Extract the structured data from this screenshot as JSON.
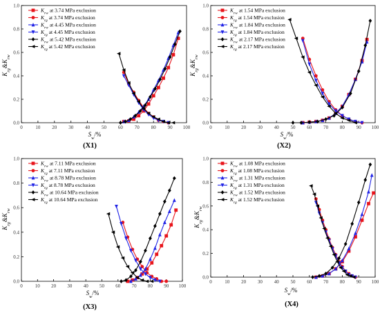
{
  "colors": {
    "red": "#e8141b",
    "blue": "#1f22e6",
    "black": "#000000"
  },
  "chart_data": [
    {
      "type": "line",
      "panel_label": "(X1)",
      "xlabel": "Sw/%",
      "ylabel": "Krg&Krw",
      "xlim": [
        0,
        100
      ],
      "ylim": [
        0,
        1.0
      ],
      "xticks": [
        "0",
        "10",
        "20",
        "30",
        "40",
        "50",
        "60",
        "70",
        "80",
        "90",
        "100"
      ],
      "yticks": [
        "0.0",
        "0.2",
        "0.4",
        "0.6",
        "0.8",
        "1.0"
      ],
      "legend_position": "top-left",
      "series": [
        {
          "name": "Krw at 3.74 MPa exclusion",
          "sym": "Krw",
          "pressure": "at 3.74 MPa exclusion",
          "color": "red",
          "marker": "square",
          "x": [
            62,
            65,
            68,
            71,
            74,
            77,
            80,
            83,
            86,
            89,
            92,
            95
          ],
          "y": [
            0.01,
            0.015,
            0.03,
            0.06,
            0.1,
            0.16,
            0.23,
            0.3,
            0.38,
            0.47,
            0.58,
            0.72
          ]
        },
        {
          "name": "Krg at 3.74 MPa exclusion",
          "sym": "Krg",
          "pressure": "at 3.74 MPa exclusion",
          "color": "red",
          "marker": "circle",
          "x": [
            62,
            65,
            68,
            71,
            74,
            77,
            80,
            83,
            86,
            89
          ],
          "y": [
            0.43,
            0.33,
            0.26,
            0.19,
            0.13,
            0.08,
            0.05,
            0.02,
            0.01,
            0.0
          ]
        },
        {
          "name": "Krw at 4.45 MPa exclusion",
          "sym": "Krw",
          "pressure": "at 4.45 MPa exclusion",
          "color": "blue",
          "marker": "triangle-up",
          "x": [
            62,
            65,
            68,
            71,
            74,
            77,
            80,
            83,
            86,
            89,
            92,
            95
          ],
          "y": [
            0.01,
            0.02,
            0.05,
            0.09,
            0.14,
            0.2,
            0.28,
            0.36,
            0.45,
            0.55,
            0.66,
            0.77
          ]
        },
        {
          "name": "Krg at 4.45 MPa exclusion",
          "sym": "Krg",
          "pressure": "at 4.45 MPa exclusion",
          "color": "blue",
          "marker": "triangle-down",
          "x": [
            62,
            65,
            68,
            71,
            74,
            77,
            80,
            83,
            86,
            89
          ],
          "y": [
            0.4,
            0.32,
            0.24,
            0.17,
            0.11,
            0.07,
            0.04,
            0.02,
            0.01,
            0.0
          ]
        },
        {
          "name": "Krw at 5.42 MPa exclusion",
          "sym": "Krw",
          "pressure": "at 5.42 MPa exclusion",
          "color": "black",
          "marker": "diamond",
          "x": [
            60,
            63,
            66,
            69,
            72,
            75,
            78,
            81,
            84,
            87,
            90,
            93,
            96
          ],
          "y": [
            0.0,
            0.01,
            0.03,
            0.06,
            0.1,
            0.15,
            0.22,
            0.29,
            0.37,
            0.46,
            0.56,
            0.67,
            0.78
          ]
        },
        {
          "name": "Krg at 5.42 MPa exclusion",
          "sym": "Krg",
          "pressure": "at 5.42 MPa exclusion",
          "color": "black",
          "marker": "tri-left",
          "x": [
            59,
            62,
            65,
            68,
            71,
            74,
            77,
            80,
            83,
            86,
            89,
            92
          ],
          "y": [
            0.59,
            0.45,
            0.34,
            0.25,
            0.18,
            0.12,
            0.08,
            0.05,
            0.03,
            0.01,
            0.0,
            0.0
          ]
        }
      ]
    },
    {
      "type": "line",
      "panel_label": "(X2)",
      "xlabel": "Sw/%",
      "ylabel": "Krg&Krw",
      "xlim": [
        0,
        100
      ],
      "ylim": [
        0,
        1.0
      ],
      "xticks": [
        "0",
        "10",
        "20",
        "30",
        "40",
        "50",
        "60",
        "70",
        "80",
        "90",
        "100"
      ],
      "yticks": [
        "0.0",
        "0.2",
        "0.4",
        "0.6",
        "0.8",
        "1.0"
      ],
      "legend_position": "top-left",
      "series": [
        {
          "name": "Krw at 1.54 MPa exclusion",
          "sym": "Krw",
          "pressure": "at 1.54 MPa exclusion",
          "color": "red",
          "marker": "square",
          "x": [
            56,
            60,
            64,
            68,
            72,
            76,
            80,
            84,
            88,
            92,
            95
          ],
          "y": [
            0.0,
            0.005,
            0.01,
            0.02,
            0.04,
            0.08,
            0.14,
            0.24,
            0.37,
            0.53,
            0.71
          ]
        },
        {
          "name": "Krg at 1.54 MPa exclusion",
          "sym": "Krg",
          "pressure": "at 1.54 MPa exclusion",
          "color": "red",
          "marker": "circle",
          "x": [
            56,
            60,
            64,
            68,
            72,
            76,
            80,
            84,
            88,
            92
          ],
          "y": [
            0.72,
            0.54,
            0.4,
            0.28,
            0.18,
            0.11,
            0.06,
            0.03,
            0.01,
            0.0
          ]
        },
        {
          "name": "Krw at 1.84 MPa exclusion",
          "sym": "Krw",
          "pressure": "at 1.84 MPa exclusion",
          "color": "blue",
          "marker": "triangle-up",
          "x": [
            56,
            60,
            64,
            68,
            72,
            76,
            80,
            84,
            88,
            92,
            95
          ],
          "y": [
            0.0,
            0.005,
            0.01,
            0.02,
            0.04,
            0.08,
            0.14,
            0.24,
            0.37,
            0.52,
            0.69
          ]
        },
        {
          "name": "Krg at 1.84 MPa exclusion",
          "sym": "Krg",
          "pressure": "at 1.84 MPa exclusion",
          "color": "blue",
          "marker": "triangle-down",
          "x": [
            56,
            60,
            64,
            68,
            72,
            76,
            80,
            84,
            88,
            92
          ],
          "y": [
            0.7,
            0.5,
            0.36,
            0.25,
            0.16,
            0.1,
            0.06,
            0.03,
            0.01,
            0.0
          ]
        },
        {
          "name": "Krw at 2.17 MPa exclusion",
          "sym": "Krw",
          "pressure": "at 2.17 MPa exclusion",
          "color": "black",
          "marker": "diamond",
          "x": [
            50,
            55,
            60,
            65,
            70,
            75,
            80,
            85,
            90,
            94,
            97
          ],
          "y": [
            0.0,
            0.0,
            0.005,
            0.01,
            0.03,
            0.06,
            0.13,
            0.25,
            0.44,
            0.66,
            0.87
          ]
        },
        {
          "name": "Krg at 2.17 MPa exclusion",
          "sym": "Krg",
          "pressure": "at 2.17 MPa exclusion",
          "color": "black",
          "marker": "tri-left",
          "x": [
            48,
            52,
            56,
            60,
            64,
            68,
            72,
            76,
            80,
            84,
            88
          ],
          "y": [
            0.88,
            0.72,
            0.56,
            0.43,
            0.32,
            0.22,
            0.14,
            0.08,
            0.04,
            0.02,
            0.0
          ]
        }
      ]
    },
    {
      "type": "line",
      "panel_label": "(X3)",
      "xlabel": "Sw/%",
      "ylabel": "Krg&Krw",
      "xlim": [
        0,
        100
      ],
      "ylim": [
        0,
        1.0
      ],
      "xticks": [
        "0",
        "10",
        "20",
        "30",
        "40",
        "50",
        "60",
        "70",
        "80",
        "90",
        "100"
      ],
      "yticks": [
        "0.0",
        "0.2",
        "0.4",
        "0.6",
        "0.8",
        "1.0"
      ],
      "legend_position": "top-left",
      "series": [
        {
          "name": "Krw at 7.11 MPa exclusion",
          "sym": "Krw",
          "pressure": "at 7.11 MPa exclusion",
          "color": "red",
          "marker": "square",
          "x": [
            66,
            69,
            72,
            75,
            78,
            81,
            84,
            87,
            90,
            93,
            96
          ],
          "y": [
            0.0,
            0.01,
            0.03,
            0.06,
            0.1,
            0.15,
            0.22,
            0.29,
            0.37,
            0.46,
            0.58
          ]
        },
        {
          "name": "Krg at 7.11 MPa exclusion",
          "sym": "Krg",
          "pressure": "at 7.11 MPa exclusion",
          "color": "red",
          "marker": "circle",
          "x": [
            63,
            66,
            69,
            72,
            75,
            78,
            81,
            84,
            87,
            90
          ],
          "y": [
            0.48,
            0.36,
            0.26,
            0.18,
            0.12,
            0.07,
            0.04,
            0.02,
            0.0,
            0.0
          ]
        },
        {
          "name": "Krw at 8.78 MPa exclusion",
          "sym": "Krw",
          "pressure": "at 8.78 MPa exclusion",
          "color": "blue",
          "marker": "triangle-up",
          "x": [
            68,
            71,
            74,
            77,
            80,
            83,
            86,
            89,
            92,
            95
          ],
          "y": [
            0.0,
            0.02,
            0.05,
            0.1,
            0.18,
            0.27,
            0.38,
            0.48,
            0.57,
            0.66
          ]
        },
        {
          "name": "Krg at 8.78 MPa exclusion",
          "sym": "Krg",
          "pressure": "at 8.78 MPa exclusion",
          "color": "blue",
          "marker": "triangle-down",
          "x": [
            59,
            62,
            65,
            68,
            71,
            74,
            77,
            80,
            83,
            86
          ],
          "y": [
            0.61,
            0.47,
            0.35,
            0.25,
            0.17,
            0.1,
            0.06,
            0.03,
            0.01,
            0.0
          ]
        },
        {
          "name": "Krw at 10.64 MPa exclusion",
          "sym": "Krw",
          "pressure": "at 10.64 MPa exclusion",
          "color": "black",
          "marker": "diamond",
          "x": [
            62,
            65,
            68,
            71,
            74,
            77,
            80,
            83,
            86,
            89,
            92,
            95
          ],
          "y": [
            0.0,
            0.01,
            0.04,
            0.09,
            0.16,
            0.25,
            0.35,
            0.45,
            0.55,
            0.65,
            0.74,
            0.84
          ]
        },
        {
          "name": "Krg at 10.64 MPa exclusion",
          "sym": "Krg",
          "pressure": "at 10.64 MPa exclusion",
          "color": "black",
          "marker": "tri-left",
          "x": [
            54,
            57,
            60,
            63,
            66,
            69,
            72,
            75,
            78,
            81
          ],
          "y": [
            0.55,
            0.4,
            0.28,
            0.19,
            0.12,
            0.07,
            0.03,
            0.01,
            0.0,
            0.0
          ]
        }
      ]
    },
    {
      "type": "line",
      "panel_label": "(X4)",
      "xlabel": "Sw/%",
      "ylabel": "Krg&Krw",
      "xlim": [
        0,
        100
      ],
      "ylim": [
        0,
        1.0
      ],
      "xticks": [
        "0",
        "10",
        "20",
        "30",
        "40",
        "50",
        "60",
        "70",
        "80",
        "90",
        "100"
      ],
      "yticks": [
        "0.0",
        "0.2",
        "0.4",
        "0.6",
        "0.8",
        "1.0"
      ],
      "legend_position": "top-left",
      "series": [
        {
          "name": "Krw at 1.08 MPa exclusion",
          "sym": "Krw",
          "pressure": "at 1.08 MPa exclusion",
          "color": "red",
          "marker": "square",
          "x": [
            64,
            68,
            72,
            76,
            80,
            84,
            88,
            92,
            96,
            99
          ],
          "y": [
            0.0,
            0.01,
            0.03,
            0.07,
            0.13,
            0.22,
            0.34,
            0.48,
            0.62,
            0.71
          ]
        },
        {
          "name": "Krg at 1.08 MPa exclusion",
          "sym": "Krg",
          "pressure": "at 1.08 MPa exclusion",
          "color": "red",
          "marker": "circle",
          "x": [
            64,
            66,
            68,
            70,
            72,
            74,
            76,
            78,
            80,
            82,
            84,
            86,
            88
          ],
          "y": [
            0.66,
            0.57,
            0.48,
            0.4,
            0.32,
            0.25,
            0.19,
            0.13,
            0.09,
            0.05,
            0.03,
            0.01,
            0.0
          ]
        },
        {
          "name": "Krw at 1.31 MPa exclusion",
          "sym": "Krw",
          "pressure": "at 1.31 MPa exclusion",
          "color": "blue",
          "marker": "triangle-up",
          "x": [
            64,
            68,
            72,
            76,
            80,
            84,
            88,
            92,
            96,
            98
          ],
          "y": [
            0.0,
            0.01,
            0.03,
            0.07,
            0.14,
            0.24,
            0.37,
            0.53,
            0.72,
            0.86
          ]
        },
        {
          "name": "Krg at 1.31 MPa exclusion",
          "sym": "Krg",
          "pressure": "at 1.31 MPa exclusion",
          "color": "blue",
          "marker": "triangle-down",
          "x": [
            64,
            66,
            68,
            70,
            72,
            74,
            76,
            78,
            80,
            82,
            84,
            86,
            88
          ],
          "y": [
            0.63,
            0.54,
            0.46,
            0.38,
            0.31,
            0.24,
            0.18,
            0.12,
            0.08,
            0.05,
            0.02,
            0.01,
            0.0
          ]
        },
        {
          "name": "Krw at 1.52 MPa exclusion",
          "sym": "Krw",
          "pressure": "at 1.52 MPa exclusion",
          "color": "black",
          "marker": "diamond",
          "x": [
            62,
            66,
            70,
            74,
            78,
            82,
            86,
            90,
            94,
            97
          ],
          "y": [
            0.0,
            0.01,
            0.03,
            0.08,
            0.16,
            0.28,
            0.45,
            0.63,
            0.82,
            0.95
          ]
        },
        {
          "name": "Krg at 1.52 MPa exclusion",
          "sym": "Krg",
          "pressure": "at 1.52 MPa exclusion",
          "color": "black",
          "marker": "tri-left",
          "x": [
            61,
            63,
            65,
            67,
            69,
            71,
            73,
            75,
            77,
            79,
            81,
            83,
            85,
            87
          ],
          "y": [
            0.77,
            0.7,
            0.6,
            0.5,
            0.41,
            0.33,
            0.26,
            0.19,
            0.13,
            0.08,
            0.05,
            0.02,
            0.01,
            0.0
          ]
        }
      ]
    }
  ]
}
